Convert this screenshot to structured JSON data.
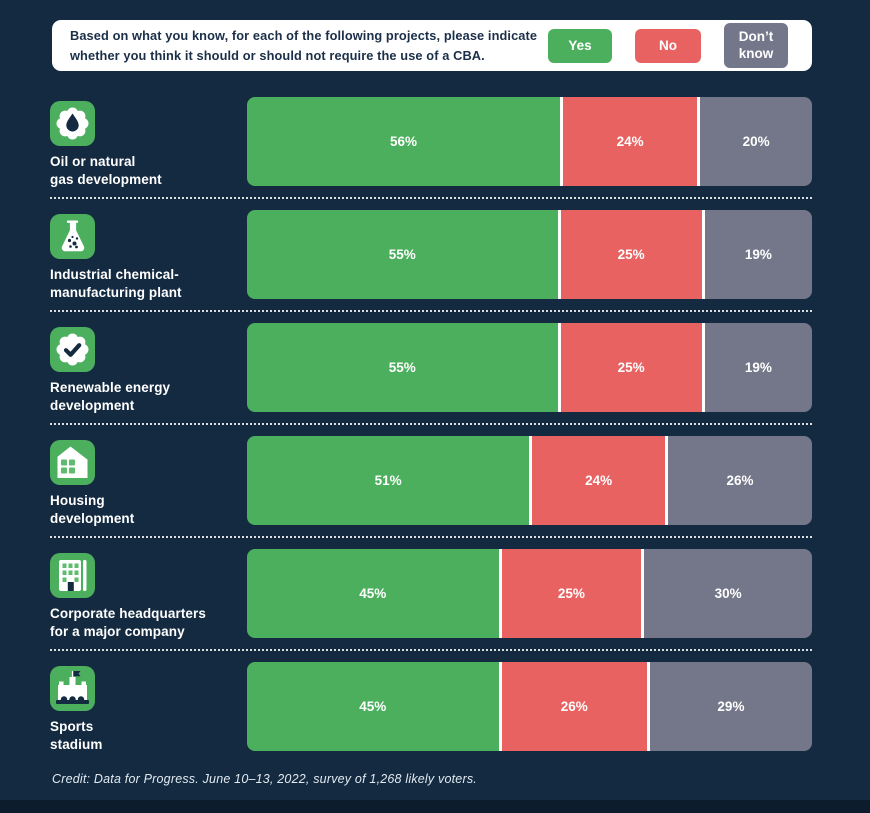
{
  "header": {
    "question_lines": [
      "Based on what you know, for each of the following projects, please indicate",
      "whether you think it should or should not require the use of a CBA."
    ],
    "legend": [
      {
        "label": "Yes",
        "color": "#4caf5e"
      },
      {
        "label": "No",
        "color": "#e96262"
      },
      {
        "label": "Don’t know",
        "color": "#747789"
      }
    ]
  },
  "chart_data": {
    "type": "bar",
    "stacked": true,
    "orientation": "horizontal",
    "unit": "%",
    "xlim": [
      0,
      100
    ],
    "grid": false,
    "legend_position": "top-right",
    "value_labels": "inside segments, white bold percent",
    "categories": [
      "Oil or natural gas development",
      "Industrial chemical-manufacturing plant",
      "Renewable energy development",
      "Housing development",
      "Corporate headquarters for a major company",
      "Sports stadium"
    ],
    "series": [
      {
        "name": "Yes",
        "color": "#4caf5e",
        "values": [
          56,
          55,
          55,
          51,
          45,
          45
        ]
      },
      {
        "name": "No",
        "color": "#e96262",
        "values": [
          24,
          25,
          25,
          24,
          25,
          26
        ]
      },
      {
        "name": "Don’t know",
        "color": "#747789",
        "values": [
          20,
          19,
          19,
          26,
          30,
          29
        ]
      }
    ]
  },
  "rows": [
    {
      "icon": "oil-drop-icon",
      "label_lines": [
        "Oil or natural",
        "gas development"
      ],
      "segments": [
        {
          "pct": 56,
          "text": "56%"
        },
        {
          "pct": 24,
          "text": "24%"
        },
        {
          "pct": 20,
          "text": "20%"
        }
      ]
    },
    {
      "icon": "flask-icon",
      "label_lines": [
        "Industrial chemical-",
        "manufacturing plant"
      ],
      "segments": [
        {
          "pct": 55,
          "text": "55%"
        },
        {
          "pct": 25,
          "text": "25%"
        },
        {
          "pct": 19,
          "text": "19%"
        }
      ]
    },
    {
      "icon": "check-badge-icon",
      "label_lines": [
        "Renewable energy",
        "development"
      ],
      "segments": [
        {
          "pct": 55,
          "text": "55%"
        },
        {
          "pct": 25,
          "text": "25%"
        },
        {
          "pct": 19,
          "text": "19%"
        }
      ]
    },
    {
      "icon": "house-icon",
      "label_lines": [
        "Housing",
        "development"
      ],
      "segments": [
        {
          "pct": 51,
          "text": "51%"
        },
        {
          "pct": 24,
          "text": "24%"
        },
        {
          "pct": 26,
          "text": "26%"
        }
      ]
    },
    {
      "icon": "building-icon",
      "label_lines": [
        "Corporate headquarters",
        "for a major company"
      ],
      "segments": [
        {
          "pct": 45,
          "text": "45%"
        },
        {
          "pct": 25,
          "text": "25%"
        },
        {
          "pct": 30,
          "text": "30%"
        }
      ]
    },
    {
      "icon": "stadium-icon",
      "label_lines": [
        "Sports",
        "stadium"
      ],
      "segments": [
        {
          "pct": 45,
          "text": "45%"
        },
        {
          "pct": 26,
          "text": "26%"
        },
        {
          "pct": 29,
          "text": "29%"
        }
      ]
    }
  ],
  "footer": {
    "credit": "Credit: Data for Progress. June 10–13, 2022, survey of 1,268 likely voters."
  },
  "colors": {
    "background": "#142a40",
    "panel": "#ffffff",
    "yes": "#4caf5e",
    "no": "#e96262",
    "dont_know": "#747789",
    "icon_tile": "#4caf5e",
    "icon_detail": "#142a40",
    "window_green": "#5fbb6e",
    "text_dark": "#1b2f48",
    "bottom_band": "#0d1c2c"
  }
}
